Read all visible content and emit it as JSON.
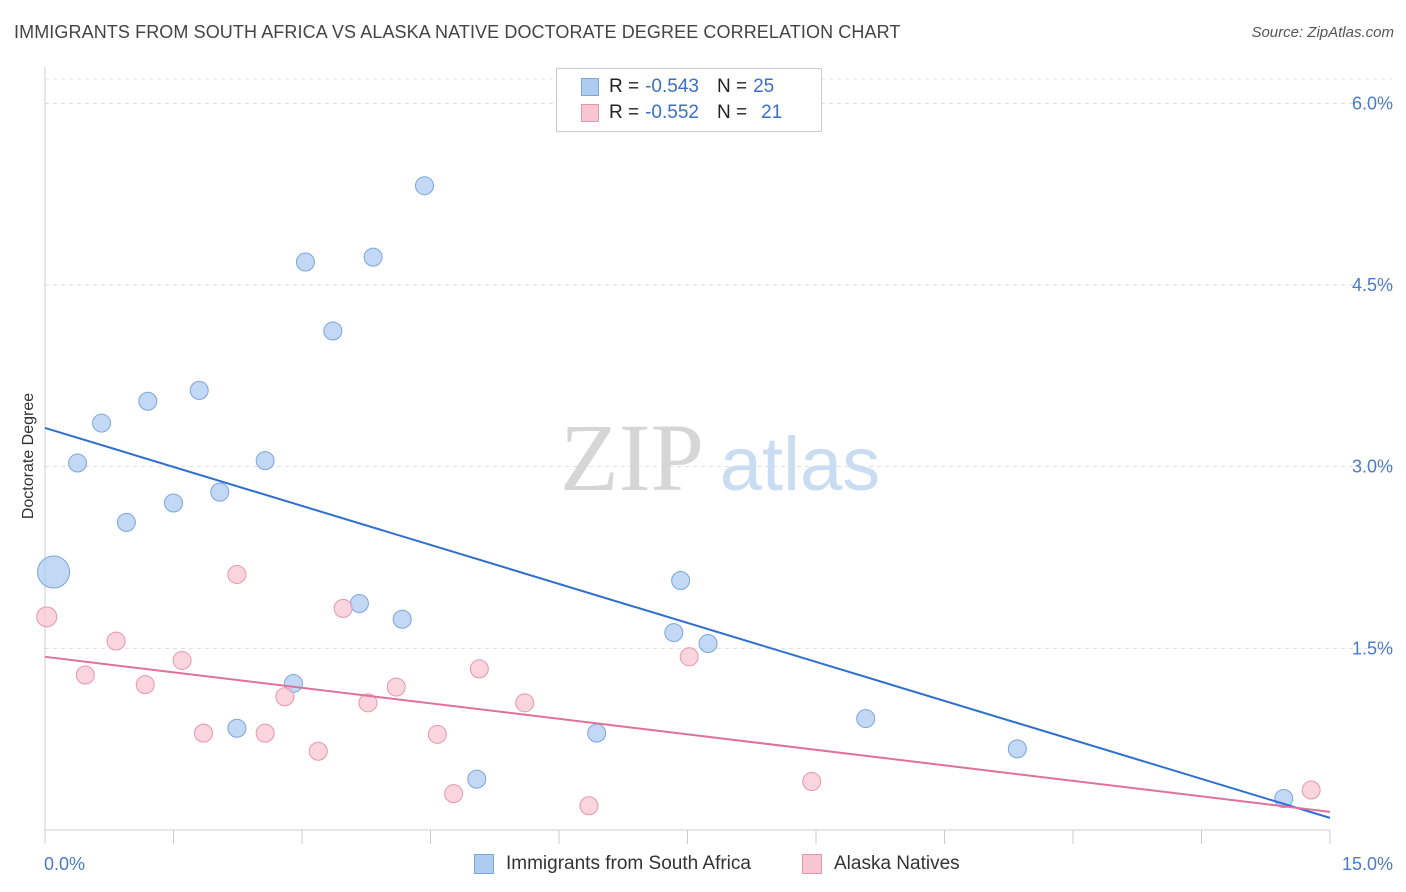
{
  "title": "IMMIGRANTS FROM SOUTH AFRICA VS ALASKA NATIVE DOCTORATE DEGREE CORRELATION CHART",
  "source": "Source: ZipAtlas.com",
  "watermark": {
    "zip": "ZIP",
    "atlas": "atlas"
  },
  "legend": {
    "rows": [
      {
        "r_label": "R = ",
        "r_value": "-0.543",
        "n_label": "N = ",
        "n_value": "25",
        "color": "#aecbf0",
        "border": "#7aa6dd"
      },
      {
        "r_label": "R = ",
        "r_value": "-0.552",
        "n_label": "N = ",
        "n_value": "21",
        "color": "#f8c5d3",
        "border": "#e895ad"
      }
    ]
  },
  "chart_data": {
    "type": "scatter",
    "xlabel": "",
    "ylabel": "Doctorate Degree",
    "xlim": [
      0,
      15
    ],
    "ylim": [
      0,
      6.3
    ],
    "x_tick_labels": [
      "0.0%",
      "15.0%"
    ],
    "y_ticks": [
      1.5,
      3.0,
      4.5,
      6.0
    ],
    "y_tick_labels": [
      "1.5%",
      "3.0%",
      "4.5%",
      "6.0%"
    ],
    "grid": true,
    "series": [
      {
        "name": "Immigrants from South Africa",
        "color": "#aecbf0",
        "stroke": "#7aa6dd",
        "line_color": "#2f6fcf",
        "points": [
          [
            0.1,
            2.13,
            16
          ],
          [
            0.38,
            3.03,
            9
          ],
          [
            0.66,
            3.36,
            9
          ],
          [
            0.95,
            2.54,
            9
          ],
          [
            1.2,
            3.54,
            9
          ],
          [
            1.5,
            2.7,
            9
          ],
          [
            1.8,
            3.63,
            9
          ],
          [
            2.04,
            2.79,
            9
          ],
          [
            2.24,
            0.84,
            9
          ],
          [
            2.57,
            3.05,
            9
          ],
          [
            2.9,
            1.21,
            9
          ],
          [
            3.04,
            4.69,
            9
          ],
          [
            3.36,
            4.12,
            9
          ],
          [
            3.67,
            1.87,
            9
          ],
          [
            3.83,
            4.73,
            9
          ],
          [
            4.17,
            1.74,
            9
          ],
          [
            4.43,
            5.32,
            9
          ],
          [
            5.04,
            0.42,
            9
          ],
          [
            6.44,
            0.8,
            9
          ],
          [
            7.34,
            1.63,
            9
          ],
          [
            7.42,
            2.06,
            9
          ],
          [
            7.74,
            1.54,
            9
          ],
          [
            9.58,
            0.92,
            9
          ],
          [
            11.35,
            0.67,
            9
          ],
          [
            14.46,
            0.26,
            9
          ]
        ],
        "trend": [
          [
            0.0,
            3.32
          ],
          [
            15.0,
            0.1
          ]
        ]
      },
      {
        "name": "Alaska Natives",
        "color": "#f8c5d3",
        "stroke": "#e895ad",
        "line_color": "#e0719a",
        "points": [
          [
            0.02,
            1.76,
            10
          ],
          [
            0.47,
            1.28,
            9
          ],
          [
            0.83,
            1.56,
            9
          ],
          [
            1.17,
            1.2,
            9
          ],
          [
            1.6,
            1.4,
            9
          ],
          [
            1.85,
            0.8,
            9
          ],
          [
            2.24,
            2.11,
            9
          ],
          [
            2.57,
            0.8,
            9
          ],
          [
            2.8,
            1.1,
            9
          ],
          [
            3.19,
            0.65,
            9
          ],
          [
            3.48,
            1.83,
            9
          ],
          [
            3.77,
            1.05,
            9
          ],
          [
            4.1,
            1.18,
            9
          ],
          [
            4.58,
            0.79,
            9
          ],
          [
            4.77,
            0.3,
            9
          ],
          [
            5.07,
            1.33,
            9
          ],
          [
            5.6,
            1.05,
            9
          ],
          [
            6.35,
            0.2,
            9
          ],
          [
            7.52,
            1.43,
            9
          ],
          [
            8.95,
            0.4,
            9
          ],
          [
            14.78,
            0.33,
            9
          ]
        ],
        "trend": [
          [
            0.0,
            1.43
          ],
          [
            15.0,
            0.15
          ]
        ]
      }
    ]
  }
}
